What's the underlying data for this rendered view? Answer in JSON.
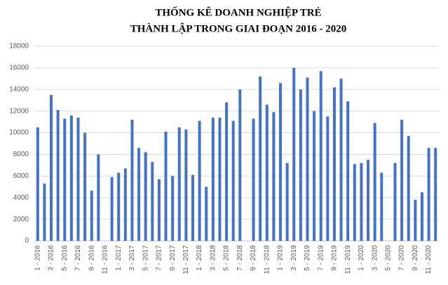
{
  "chart_data": {
    "type": "bar",
    "title": [
      "THỐNG KÊ DOANH  NGHIỆP TRẺ",
      "THÀNH  LẬP TRONG GIAI ĐOẠN  2016 - 2020"
    ],
    "categories": [
      "1 - 2016",
      null,
      "3 - 2016",
      null,
      "5 - 2016",
      null,
      "7 - 2016",
      null,
      "9 - 2016",
      null,
      "11 - 2016",
      null,
      "1 - 2017",
      null,
      "3 - 2017",
      null,
      "5 - 2017",
      null,
      "7 - 2017",
      null,
      "9 - 2017",
      null,
      "11 - 2017",
      null,
      "1 - 2018",
      null,
      "3 - 2018",
      null,
      "5 - 2018",
      null,
      "7 - 2018",
      null,
      "9 - 2018",
      null,
      "11 - 2018",
      null,
      "1 - 2019",
      null,
      "3 - 2019",
      null,
      "5 - 2019",
      null,
      "7 - 2019",
      null,
      "9 - 2019",
      null,
      "11 - 2019",
      null,
      "1 - 2020",
      null,
      "3 - 2020",
      null,
      "5 - 2020",
      null,
      "7 - 2020",
      null,
      "9 - 2020",
      null,
      "11 - 2020",
      null
    ],
    "values": [
      10500,
      5300,
      13500,
      12100,
      11300,
      11600,
      11400,
      10000,
      4650,
      8000,
      null,
      5900,
      6300,
      6700,
      11200,
      8600,
      8200,
      7300,
      5700,
      10100,
      6000,
      10500,
      10300,
      6100,
      11100,
      5000,
      11400,
      11400,
      12800,
      11100,
      14000,
      null,
      11300,
      15200,
      12600,
      11900,
      14600,
      7200,
      16000,
      14000,
      15100,
      12000,
      15700,
      11500,
      14200,
      15000,
      12900,
      7100,
      7200,
      7500,
      10900,
      6300,
      null,
      7200,
      11200,
      9700,
      3800,
      4500,
      8600,
      8600
    ],
    "color": "#4472c4",
    "ylim": [
      0,
      18000
    ],
    "yticks": [
      0,
      2000,
      4000,
      6000,
      8000,
      10000,
      12000,
      14000,
      16000,
      18000
    ],
    "grid": true
  }
}
